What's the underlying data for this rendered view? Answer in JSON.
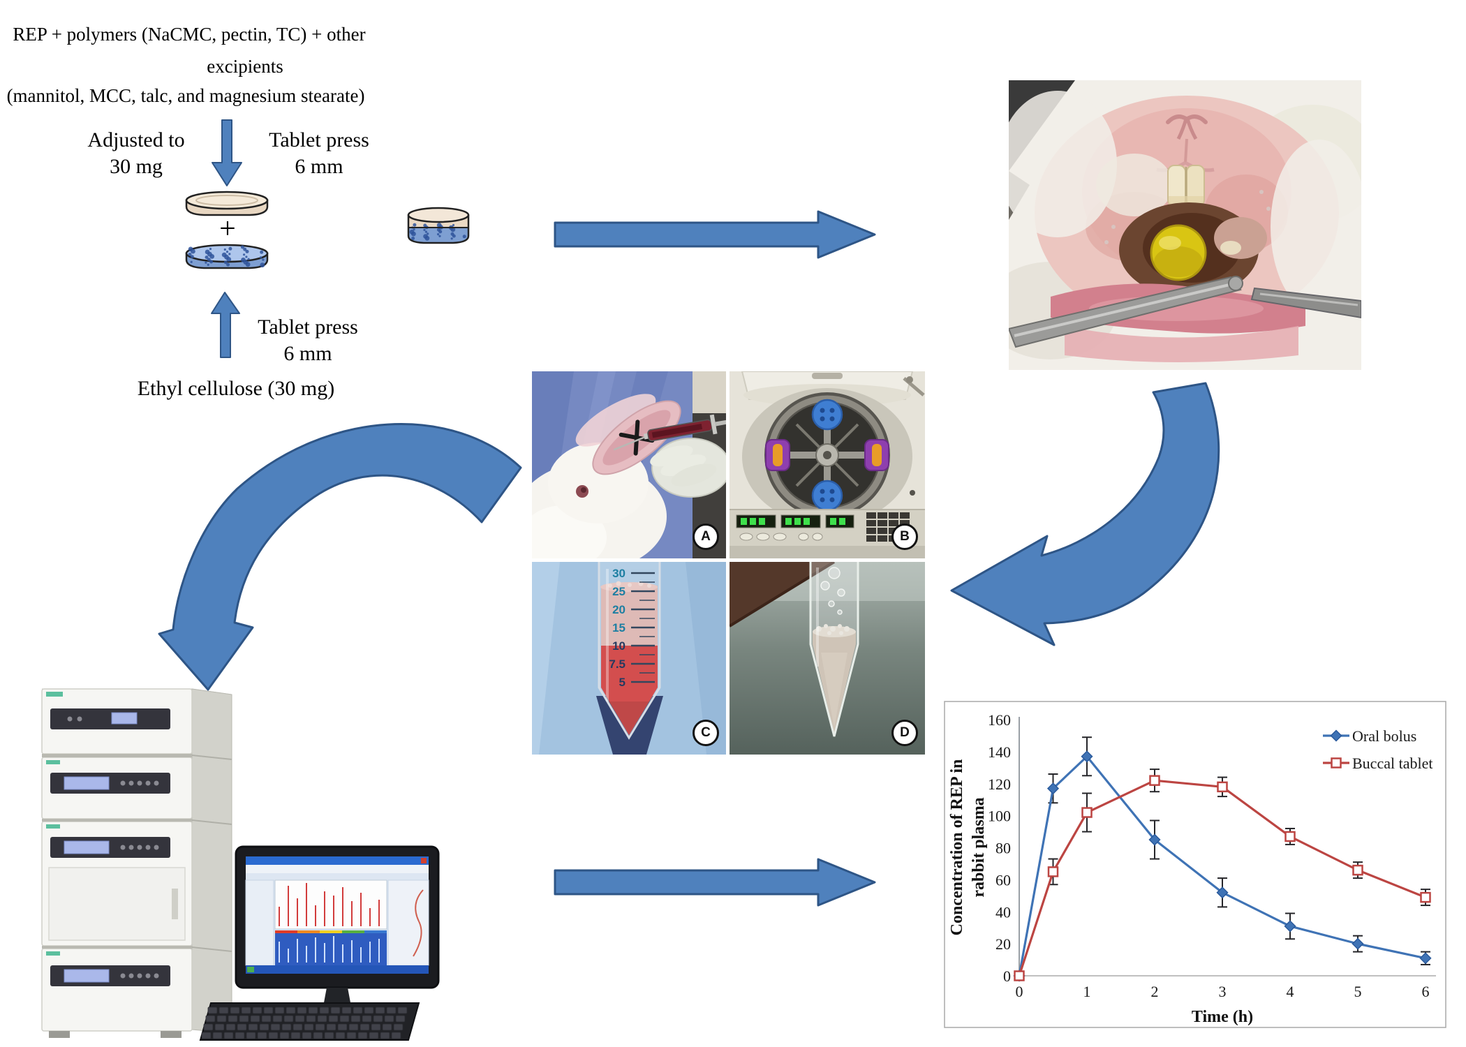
{
  "figure": {
    "colors": {
      "arrow_fill": "#4f81bd",
      "arrow_border": "#2e5586",
      "tablet_top_layer": "#f3e7d8",
      "tablet_blue_layer": "#7e9fd2"
    },
    "formulation": {
      "line1": "REP + polymers (NaCMC, pectin, TC) + other",
      "line2": "excipients",
      "line3": "(mannitol, MCC, talc, and magnesium stearate)"
    },
    "flow": {
      "adjusted_to": "Adjusted to",
      "adjusted_amount": "30 mg",
      "tablet_press_top_line1": "Tablet press",
      "tablet_press_top_line2": "6 mm",
      "plus_sign": "+",
      "tablet_press_bottom_line1": "Tablet press",
      "tablet_press_bottom_line2": "6 mm",
      "ethyl_cellulose": "Ethyl cellulose (30 mg)"
    },
    "photos": {
      "blood_draw_label": "A",
      "centrifuge_label": "B",
      "blood_tube_label": "C",
      "plasma_tube_label": "D",
      "blood_tube_scale": [
        "30",
        "25",
        "20",
        "15",
        "10",
        "7.5",
        "5"
      ]
    }
  },
  "chart_data": {
    "type": "line",
    "title": "",
    "xlabel": "Time (h)",
    "ylabel": "Concentration of REP in rabbit plasma",
    "ylabel_lines": [
      "Concentration of REP in",
      "rabbit plasma"
    ],
    "x": [
      0,
      0.5,
      1,
      2,
      3,
      4,
      5,
      6
    ],
    "xticks": [
      0,
      1,
      2,
      3,
      4,
      5,
      6
    ],
    "yticks": [
      0,
      20,
      40,
      60,
      80,
      100,
      120,
      140,
      160
    ],
    "xlim": [
      0,
      6
    ],
    "ylim": [
      0,
      160
    ],
    "grid": false,
    "legend_position": "top-right",
    "series": [
      {
        "name": "Oral bolus",
        "color": "#3f73b5",
        "marker": "diamond",
        "marker_stroke": "#2a5a9c",
        "values": [
          0,
          117,
          137,
          85,
          52,
          31,
          20,
          11
        ],
        "errors": [
          0,
          9,
          12,
          12,
          9,
          8,
          5,
          4
        ]
      },
      {
        "name": "Buccal tablet",
        "color": "#bc4542",
        "marker": "square",
        "marker_stroke": "#9e3432",
        "values": [
          0,
          65,
          102,
          122,
          118,
          87,
          66,
          49
        ],
        "errors": [
          0,
          8,
          12,
          7,
          6,
          5,
          5,
          5
        ]
      }
    ]
  }
}
